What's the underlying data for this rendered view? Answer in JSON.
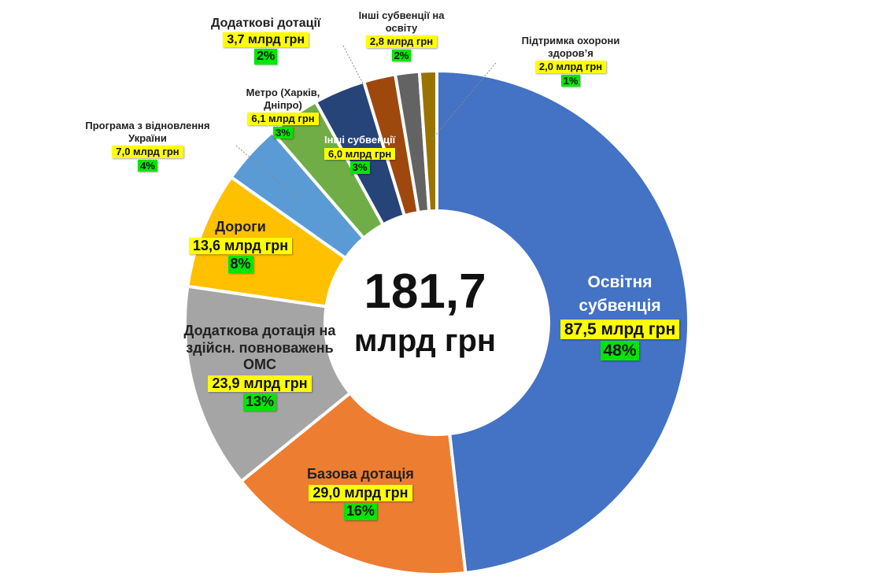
{
  "chart_data": {
    "type": "pie",
    "total": {
      "value": "181,7",
      "unit": "млрд грн"
    },
    "slices": [
      {
        "name": "Освітня субвенція",
        "value": 87.5,
        "value_label": "87,5 млрд грн",
        "percent_label": "48%",
        "color": "#4472c4"
      },
      {
        "name": "Базова дотація",
        "value": 29.0,
        "value_label": "29,0 млрд грн",
        "percent_label": "16%",
        "color": "#ed7d31"
      },
      {
        "name": "Додаткова дотація на здійсн. повноважень ОМС",
        "value": 23.9,
        "value_label": "23,9 млрд грн",
        "percent_label": "13%",
        "color": "#a5a5a5"
      },
      {
        "name": "Дороги",
        "value": 13.6,
        "value_label": "13,6 млрд грн",
        "percent_label": "8%",
        "color": "#ffc000"
      },
      {
        "name": "Програма з відновлення України",
        "value": 7.0,
        "value_label": "7,0 млрд грн",
        "percent_label": "4%",
        "color": "#5b9bd5"
      },
      {
        "name": "Метро (Харків, Дніпро)",
        "value": 6.1,
        "value_label": "6,1 млрд грн",
        "percent_label": "3%",
        "color": "#70ad47"
      },
      {
        "name": "Інші субвенції",
        "value": 6.0,
        "value_label": "6,0 млрд грн",
        "percent_label": "3%",
        "color": "#264478"
      },
      {
        "name": "Додаткові дотації",
        "value": 3.7,
        "value_label": "3,7 млрд грн",
        "percent_label": "2%",
        "color": "#9e480e"
      },
      {
        "name": "Інші субвенції на освіту",
        "value": 2.8,
        "value_label": "2,8 млрд грн",
        "percent_label": "2%",
        "color": "#636363"
      },
      {
        "name": "Підтримка охорони здоров’я",
        "value": 2.0,
        "value_label": "2,0 млрд грн",
        "percent_label": "1%",
        "color": "#997300"
      }
    ]
  }
}
